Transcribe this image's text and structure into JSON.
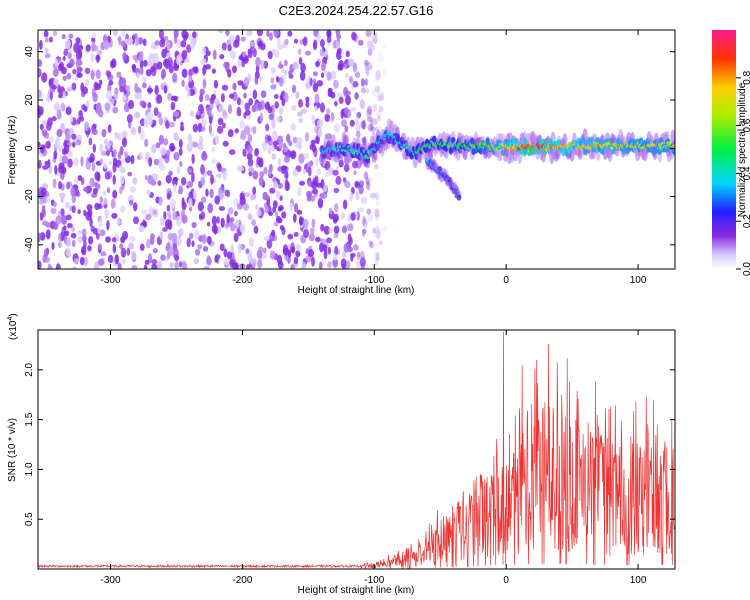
{
  "title": "C2E3.2024.254.22.57.G16",
  "chart_data": [
    {
      "type": "heatmap",
      "name": "spectrogram",
      "xlabel": "Height of straight line (km)",
      "ylabel": "Frequency (Hz)",
      "xlim": [
        -355,
        128
      ],
      "ylim": [
        -50,
        49
      ],
      "xticks": [
        -300,
        -200,
        -100,
        0,
        100
      ],
      "xtick_labels": [
        "-300",
        "-200",
        "-100",
        "0",
        "100"
      ],
      "yticks": [
        -40,
        -20,
        0,
        20,
        40
      ],
      "ytick_labels": [
        "-40",
        "-20",
        "0",
        "20",
        "40"
      ],
      "noise_region_x": [
        -355,
        -92
      ],
      "signal_track": [
        {
          "x": -140,
          "f": -1,
          "amp": 0.35
        },
        {
          "x": -120,
          "f": 0,
          "amp": 0.45
        },
        {
          "x": -105,
          "f": -3,
          "amp": 0.45
        },
        {
          "x": -90,
          "f": 6,
          "amp": 0.4
        },
        {
          "x": -80,
          "f": 2,
          "amp": 0.45
        },
        {
          "x": -70,
          "f": -2,
          "amp": 0.5
        },
        {
          "x": -55,
          "f": 2,
          "amp": 0.55
        },
        {
          "x": -40,
          "f": 1,
          "amp": 0.55
        },
        {
          "x": -20,
          "f": 1,
          "amp": 0.6
        },
        {
          "x": 0,
          "f": 0.5,
          "amp": 0.75
        },
        {
          "x": 20,
          "f": 0.5,
          "amp": 0.95
        },
        {
          "x": 40,
          "f": 0.5,
          "amp": 0.85
        },
        {
          "x": 60,
          "f": 1,
          "amp": 0.75
        },
        {
          "x": 80,
          "f": 1,
          "amp": 0.75
        },
        {
          "x": 100,
          "f": 1,
          "amp": 0.7
        },
        {
          "x": 128,
          "f": 1,
          "amp": 0.7
        }
      ],
      "branch_track": [
        {
          "x": -60,
          "f": -5,
          "amp": 0.35
        },
        {
          "x": -45,
          "f": -12,
          "amp": 0.3
        },
        {
          "x": -35,
          "f": -21,
          "amp": 0.3
        }
      ],
      "colorbar": {
        "label": "Normalized spectral amplitude",
        "range": [
          0,
          1
        ],
        "ticks": [
          0.0,
          0.2,
          0.4,
          0.6,
          0.8
        ],
        "tick_labels": [
          "0.0",
          "0.2",
          "0.4",
          "0.6",
          "0.8"
        ]
      }
    },
    {
      "type": "line",
      "name": "snr",
      "xlabel": "Height of straight line (km)",
      "ylabel": "SNR (10 * v/v)",
      "multiplier": "(x10",
      "multiplier_exp": "4",
      "multiplier_close": ")",
      "xlim": [
        -355,
        128
      ],
      "ylim": [
        0,
        2.4
      ],
      "xticks": [
        -300,
        -200,
        -100,
        0,
        100
      ],
      "xtick_labels": [
        "-300",
        "-200",
        "-100",
        "0",
        "100"
      ],
      "yticks": [
        0.5,
        1.0,
        1.5,
        2.0
      ],
      "ytick_labels": [
        "0.5",
        "1.0",
        "1.5",
        "2.0"
      ],
      "line_color": "#ee3333",
      "envelope": [
        {
          "x": -355,
          "y": 0.03
        },
        {
          "x": -110,
          "y": 0.03
        },
        {
          "x": -95,
          "y": 0.05
        },
        {
          "x": -75,
          "y": 0.1
        },
        {
          "x": -60,
          "y": 0.2
        },
        {
          "x": -45,
          "y": 0.35
        },
        {
          "x": -30,
          "y": 0.5
        },
        {
          "x": -15,
          "y": 0.65
        },
        {
          "x": -5,
          "y": 0.9
        },
        {
          "x": 5,
          "y": 0.8
        },
        {
          "x": 20,
          "y": 0.95
        },
        {
          "x": 35,
          "y": 1.1
        },
        {
          "x": 50,
          "y": 0.95
        },
        {
          "x": 70,
          "y": 0.85
        },
        {
          "x": 90,
          "y": 0.75
        },
        {
          "x": 110,
          "y": 0.8
        },
        {
          "x": 128,
          "y": 0.8
        }
      ],
      "peaks": [
        {
          "x": -2,
          "y": 2.38
        },
        {
          "x": 32,
          "y": 2.26
        },
        {
          "x": 12,
          "y": 2.05
        },
        {
          "x": 42,
          "y": 1.75
        },
        {
          "x": 55,
          "y": 1.4
        },
        {
          "x": 72,
          "y": 1.35
        }
      ]
    }
  ]
}
